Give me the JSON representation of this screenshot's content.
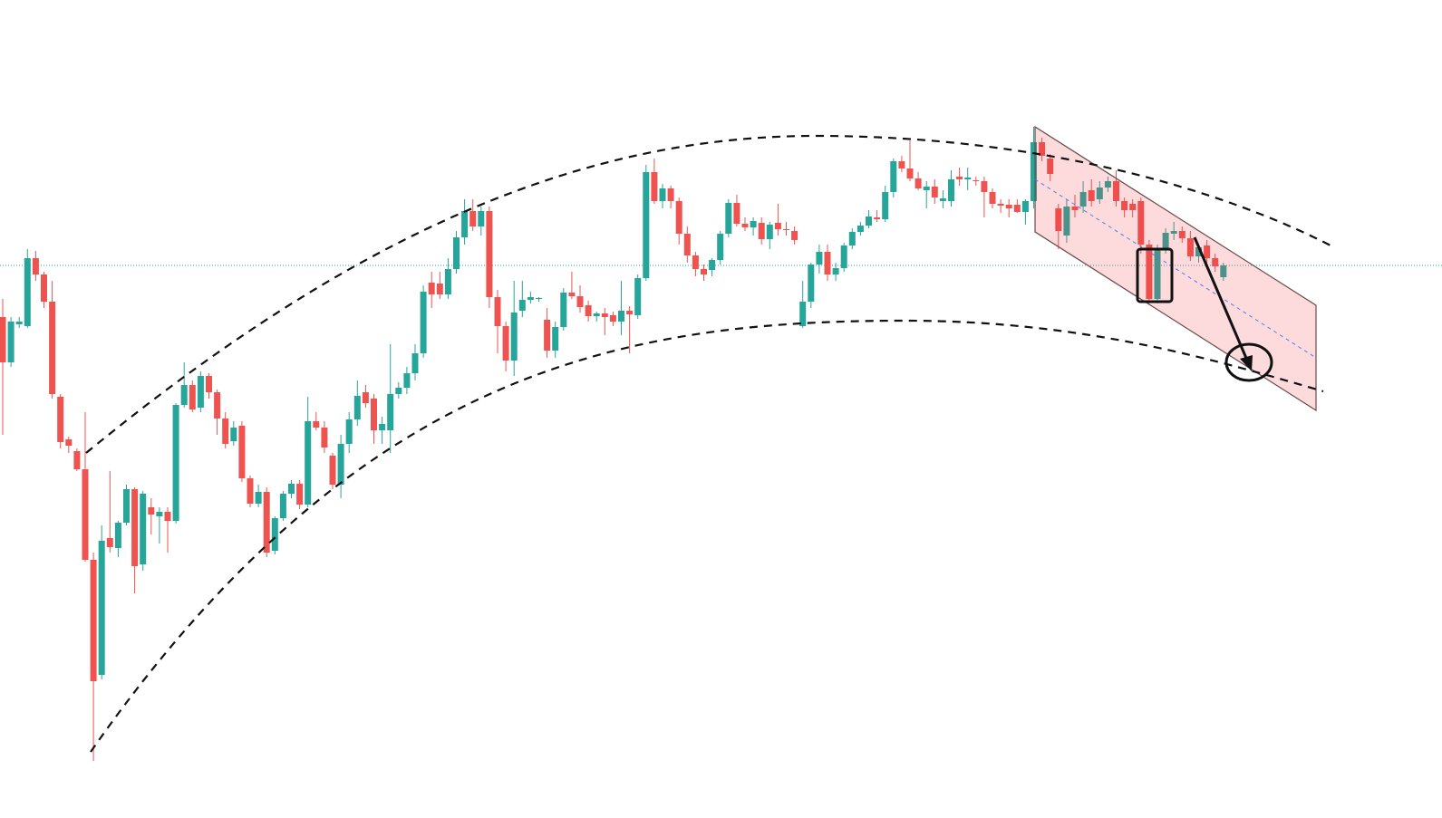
{
  "chart_data": {
    "type": "candlestick",
    "up_color": "#26a69a",
    "down_color": "#ef5350",
    "ylim": [
      0,
      900
    ],
    "candles": [
      [
        550,
        570,
        420,
        500
      ],
      [
        500,
        550,
        495,
        545
      ],
      [
        542,
        550,
        538,
        545
      ],
      [
        540,
        625,
        538,
        615
      ],
      [
        615,
        623,
        590,
        597
      ],
      [
        597,
        600,
        560,
        567
      ],
      [
        567,
        590,
        460,
        465
      ],
      [
        462,
        465,
        405,
        412
      ],
      [
        415,
        418,
        400,
        408
      ],
      [
        402,
        405,
        380,
        382
      ],
      [
        382,
        445,
        280,
        282
      ],
      [
        282,
        290,
        60,
        148
      ],
      [
        155,
        320,
        150,
        303
      ],
      [
        306,
        380,
        290,
        296
      ],
      [
        295,
        325,
        285,
        323
      ],
      [
        323,
        365,
        320,
        360
      ],
      [
        360,
        362,
        245,
        275
      ],
      [
        277,
        358,
        270,
        355
      ],
      [
        340,
        350,
        310,
        332
      ],
      [
        330,
        340,
        300,
        335
      ],
      [
        335,
        340,
        290,
        325
      ],
      [
        325,
        455,
        322,
        453
      ],
      [
        453,
        500,
        450,
        475
      ],
      [
        475,
        480,
        445,
        448
      ],
      [
        450,
        490,
        445,
        485
      ],
      [
        485,
        488,
        460,
        467
      ],
      [
        467,
        470,
        420,
        438
      ],
      [
        438,
        445,
        405,
        410
      ],
      [
        413,
        435,
        408,
        428
      ],
      [
        430,
        435,
        368,
        372
      ],
      [
        372,
        375,
        340,
        344
      ],
      [
        344,
        365,
        340,
        357
      ],
      [
        357,
        362,
        285,
        290
      ],
      [
        292,
        330,
        288,
        328
      ],
      [
        328,
        358,
        325,
        355
      ],
      [
        355,
        370,
        350,
        366
      ],
      [
        366,
        370,
        338,
        343
      ],
      [
        343,
        462,
        340,
        435
      ],
      [
        435,
        445,
        425,
        428
      ],
      [
        428,
        435,
        400,
        406
      ],
      [
        397,
        400,
        360,
        365
      ],
      [
        365,
        420,
        350,
        410
      ],
      [
        410,
        445,
        400,
        437
      ],
      [
        437,
        480,
        430,
        463
      ],
      [
        467,
        475,
        450,
        455
      ],
      [
        460,
        465,
        410,
        425
      ],
      [
        425,
        440,
        410,
        432
      ],
      [
        425,
        520,
        400,
        465
      ],
      [
        465,
        478,
        460,
        472
      ],
      [
        472,
        495,
        465,
        488
      ],
      [
        488,
        520,
        480,
        510
      ],
      [
        510,
        585,
        505,
        578
      ],
      [
        588,
        600,
        560,
        575
      ],
      [
        587,
        600,
        570,
        575
      ],
      [
        575,
        615,
        570,
        603
      ],
      [
        603,
        645,
        598,
        638
      ],
      [
        638,
        680,
        630,
        667
      ],
      [
        667,
        680,
        645,
        650
      ],
      [
        650,
        672,
        640,
        667
      ],
      [
        667,
        672,
        560,
        572
      ],
      [
        572,
        580,
        510,
        540
      ],
      [
        540,
        545,
        490,
        502
      ],
      [
        502,
        590,
        485,
        555
      ],
      [
        557,
        590,
        550,
        569
      ],
      [
        569,
        578,
        565,
        572
      ],
      [
        570,
        572,
        567,
        571
      ],
      [
        547,
        560,
        505,
        513
      ],
      [
        513,
        545,
        505,
        539
      ],
      [
        539,
        582,
        535,
        577
      ],
      [
        577,
        600,
        570,
        573
      ],
      [
        573,
        585,
        555,
        561
      ],
      [
        563,
        568,
        545,
        551
      ],
      [
        551,
        556,
        545,
        554
      ],
      [
        554,
        560,
        530,
        550
      ],
      [
        552,
        556,
        540,
        545
      ],
      [
        545,
        590,
        530,
        557
      ],
      [
        557,
        562,
        510,
        553
      ],
      [
        552,
        597,
        548,
        593
      ],
      [
        593,
        718,
        590,
        710
      ],
      [
        710,
        725,
        675,
        678
      ],
      [
        678,
        697,
        670,
        692
      ],
      [
        692,
        695,
        670,
        678
      ],
      [
        678,
        682,
        630,
        642
      ],
      [
        642,
        650,
        610,
        618
      ],
      [
        618,
        622,
        595,
        603
      ],
      [
        603,
        608,
        590,
        597
      ],
      [
        602,
        615,
        595,
        613
      ],
      [
        613,
        645,
        608,
        642
      ],
      [
        642,
        680,
        638,
        676
      ],
      [
        676,
        685,
        650,
        653
      ],
      [
        653,
        660,
        645,
        649
      ],
      [
        649,
        660,
        640,
        656
      ],
      [
        654,
        660,
        630,
        636
      ],
      [
        636,
        655,
        625,
        652
      ],
      [
        654,
        675,
        640,
        647
      ],
      [
        647,
        655,
        640,
        646
      ],
      [
        645,
        650,
        630,
        635
      ],
      [
        540,
        590,
        538,
        567
      ],
      [
        567,
        610,
        560,
        608
      ],
      [
        608,
        630,
        598,
        622
      ],
      [
        622,
        630,
        590,
        597
      ],
      [
        597,
        610,
        590,
        604
      ],
      [
        604,
        632,
        600,
        629
      ],
      [
        629,
        648,
        625,
        644
      ],
      [
        644,
        655,
        640,
        651
      ],
      [
        651,
        668,
        648,
        661
      ],
      [
        660,
        668,
        655,
        658
      ],
      [
        658,
        695,
        655,
        688
      ],
      [
        688,
        725,
        682,
        722
      ],
      [
        722,
        728,
        710,
        714
      ],
      [
        714,
        745,
        700,
        703
      ],
      [
        703,
        710,
        690,
        692
      ],
      [
        690,
        700,
        670,
        694
      ],
      [
        694,
        702,
        675,
        682
      ],
      [
        678,
        690,
        670,
        681
      ],
      [
        678,
        712,
        672,
        702
      ],
      [
        705,
        715,
        695,
        702
      ],
      [
        702,
        715,
        690,
        704
      ],
      [
        701,
        705,
        695,
        700
      ],
      [
        700,
        705,
        660,
        688
      ],
      [
        688,
        692,
        670,
        675
      ],
      [
        675,
        680,
        665,
        673
      ],
      [
        674,
        680,
        660,
        670
      ],
      [
        674,
        680,
        665,
        666
      ],
      [
        666,
        680,
        652,
        678
      ],
      [
        678,
        760,
        670,
        743
      ],
      [
        743,
        748,
        722,
        728
      ],
      [
        725,
        730,
        700,
        708
      ],
      [
        670,
        675,
        625,
        645
      ],
      [
        640,
        680,
        632,
        672
      ],
      [
        672,
        685,
        660,
        668
      ],
      [
        672,
        700,
        665,
        688
      ],
      [
        690,
        702,
        672,
        678
      ],
      [
        680,
        700,
        675,
        693
      ],
      [
        693,
        705,
        688,
        700
      ],
      [
        700,
        712,
        672,
        678
      ],
      [
        678,
        682,
        660,
        668
      ],
      [
        675,
        680,
        660,
        668
      ],
      [
        678,
        682,
        620,
        630
      ],
      [
        630,
        635,
        565,
        570
      ],
      [
        570,
        630,
        565,
        625
      ],
      [
        625,
        648,
        620,
        643
      ],
      [
        642,
        655,
        635,
        645
      ],
      [
        645,
        650,
        632,
        637
      ],
      [
        637,
        645,
        612,
        617
      ],
      [
        617,
        630,
        610,
        627
      ],
      [
        629,
        635,
        610,
        615
      ],
      [
        615,
        620,
        600,
        606
      ],
      [
        594,
        610,
        590,
        607
      ]
    ]
  }
}
